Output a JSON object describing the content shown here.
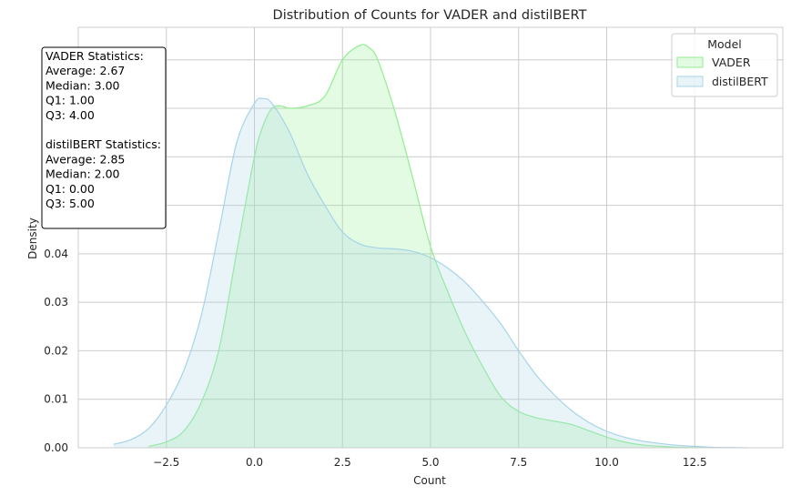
{
  "chart_data": {
    "type": "area",
    "title": "Distribution of Counts for VADER and distilBERT",
    "xlabel": "Count",
    "ylabel": "Density",
    "xlim": [
      -5,
      15
    ],
    "ylim": [
      0,
      0.0867
    ],
    "xticks": [
      -2.5,
      0.0,
      2.5,
      5.0,
      7.5,
      10.0,
      12.5
    ],
    "xtick_labels": [
      "−2.5",
      "0.0",
      "2.5",
      "5.0",
      "7.5",
      "10.0",
      "12.5"
    ],
    "yticks": [
      0.0,
      0.01,
      0.02,
      0.03,
      0.04
    ],
    "ytick_labels": [
      "0.00",
      "0.01",
      "0.02",
      "0.03",
      "0.04"
    ],
    "grid": true,
    "legend": {
      "title": "Model",
      "position": "top-right",
      "entries": [
        "VADER",
        "distilBERT"
      ]
    },
    "series": [
      {
        "name": "VADER",
        "line_color": "#90ee90",
        "fill_color": "#90ee90",
        "fill_opacity": 0.25,
        "x": [
          -3.0,
          -2.5,
          -2.0,
          -1.5,
          -1.0,
          -0.5,
          0.0,
          0.25,
          0.5,
          0.75,
          1.0,
          1.5,
          2.0,
          2.5,
          3.0,
          3.25,
          3.5,
          4.0,
          4.5,
          5.0,
          5.5,
          6.0,
          6.5,
          7.0,
          7.5,
          8.0,
          8.5,
          9.0,
          9.5,
          10.0,
          10.5,
          11.0,
          11.5,
          12.0,
          12.5,
          13.0
        ],
        "y": [
          0.0003,
          0.0012,
          0.0035,
          0.0095,
          0.0205,
          0.0405,
          0.06,
          0.0665,
          0.07,
          0.0705,
          0.07,
          0.0705,
          0.0725,
          0.08,
          0.083,
          0.0825,
          0.08,
          0.069,
          0.0555,
          0.0415,
          0.032,
          0.0235,
          0.0165,
          0.0105,
          0.0075,
          0.0062,
          0.0055,
          0.0048,
          0.0035,
          0.0022,
          0.0012,
          0.0006,
          0.0003,
          0.0001,
          5e-05,
          0.0
        ]
      },
      {
        "name": "distilBERT",
        "line_color": "#a6d4e6",
        "fill_color": "#add8e6",
        "fill_opacity": 0.28,
        "x": [
          -4.0,
          -3.5,
          -3.0,
          -2.5,
          -2.0,
          -1.5,
          -1.0,
          -0.5,
          0.0,
          0.25,
          0.5,
          1.0,
          1.5,
          2.0,
          2.5,
          3.0,
          3.5,
          4.0,
          4.5,
          5.0,
          5.5,
          6.0,
          6.5,
          7.0,
          7.5,
          8.0,
          8.5,
          9.0,
          9.5,
          10.0,
          10.5,
          11.0,
          11.5,
          12.0,
          12.5,
          13.0,
          13.5,
          14.0
        ],
        "y": [
          0.0007,
          0.0017,
          0.004,
          0.0088,
          0.016,
          0.0275,
          0.045,
          0.063,
          0.071,
          0.072,
          0.071,
          0.065,
          0.0565,
          0.05,
          0.0445,
          0.042,
          0.0412,
          0.041,
          0.0405,
          0.0392,
          0.037,
          0.034,
          0.03,
          0.0255,
          0.02,
          0.015,
          0.011,
          0.0077,
          0.0052,
          0.0034,
          0.0022,
          0.0014,
          0.0009,
          0.0005,
          0.0003,
          0.0001,
          5e-05,
          0.0
        ]
      }
    ],
    "annotations": {
      "stats_box_lines": [
        "VADER Statistics:",
        "Average: 2.67",
        "Median: 3.00",
        "Q1: 1.00",
        "Q3: 4.00",
        "",
        "distilBERT Statistics:",
        "Average: 2.85",
        "Median: 2.00",
        "Q1: 0.00",
        "Q3: 5.00"
      ]
    }
  }
}
